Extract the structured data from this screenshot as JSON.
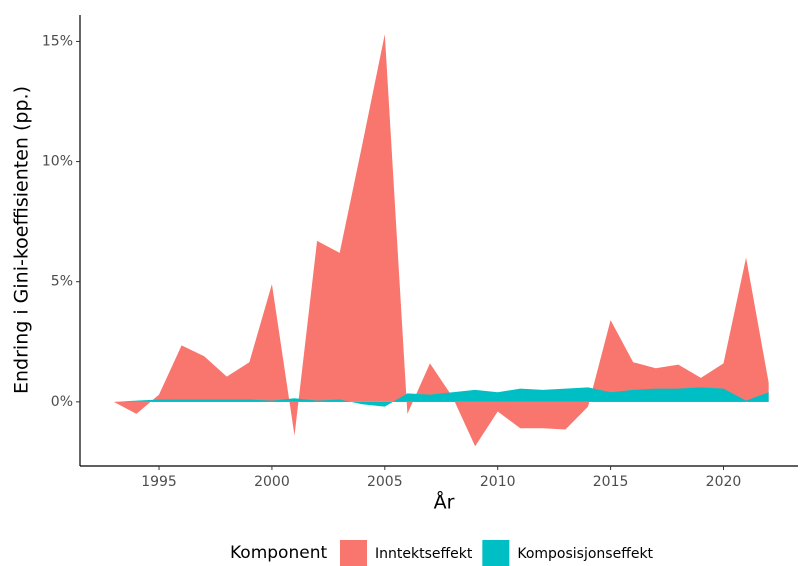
{
  "chart_data": {
    "type": "area",
    "xlabel": "År",
    "ylabel": "Endring i Gini-koeffisienten (pp.)",
    "legend_title": "Komponent",
    "legend": "bottom",
    "x": [
      1993,
      1994,
      1995,
      1996,
      1997,
      1998,
      1999,
      2000,
      2001,
      2002,
      2003,
      2004,
      2005,
      2006,
      2007,
      2008,
      2009,
      2010,
      2011,
      2012,
      2013,
      2014,
      2015,
      2016,
      2017,
      2018,
      2019,
      2020,
      2021,
      2022
    ],
    "series": [
      {
        "name": "Inntektseffekt",
        "color": "#f8766d",
        "values": [
          0,
          -0.5,
          0.3,
          2.35,
          1.9,
          1.05,
          1.65,
          4.9,
          -1.4,
          6.7,
          6.2,
          10.7,
          15.3,
          -0.5,
          1.6,
          0.2,
          -1.85,
          -0.4,
          -1.1,
          -1.1,
          -1.15,
          -0.2,
          3.4,
          1.65,
          1.4,
          1.55,
          1.0,
          1.6,
          6.0,
          0.8
        ]
      },
      {
        "name": "Komposisjonseffekt",
        "color": "#00bfc4",
        "values": [
          0,
          0.05,
          0.1,
          0.1,
          0.1,
          0.1,
          0.1,
          0.05,
          0.15,
          0.05,
          0.1,
          -0.1,
          -0.2,
          0.35,
          0.3,
          0.4,
          0.5,
          0.4,
          0.55,
          0.5,
          0.55,
          0.6,
          0.4,
          0.5,
          0.55,
          0.55,
          0.6,
          0.55,
          0.05,
          0.4
        ]
      }
    ],
    "xlim": [
      1991.5,
      2023.3
    ],
    "xticks": [
      1995,
      2000,
      2005,
      2010,
      2015,
      2020
    ],
    "ylim": [
      -2.67,
      16.1
    ],
    "yticks": [
      {
        "value": 0,
        "label": "0%"
      },
      {
        "value": 5,
        "label": "5%"
      },
      {
        "value": 10,
        "label": "10%"
      },
      {
        "value": 15,
        "label": "15%"
      }
    ],
    "grid": false
  }
}
